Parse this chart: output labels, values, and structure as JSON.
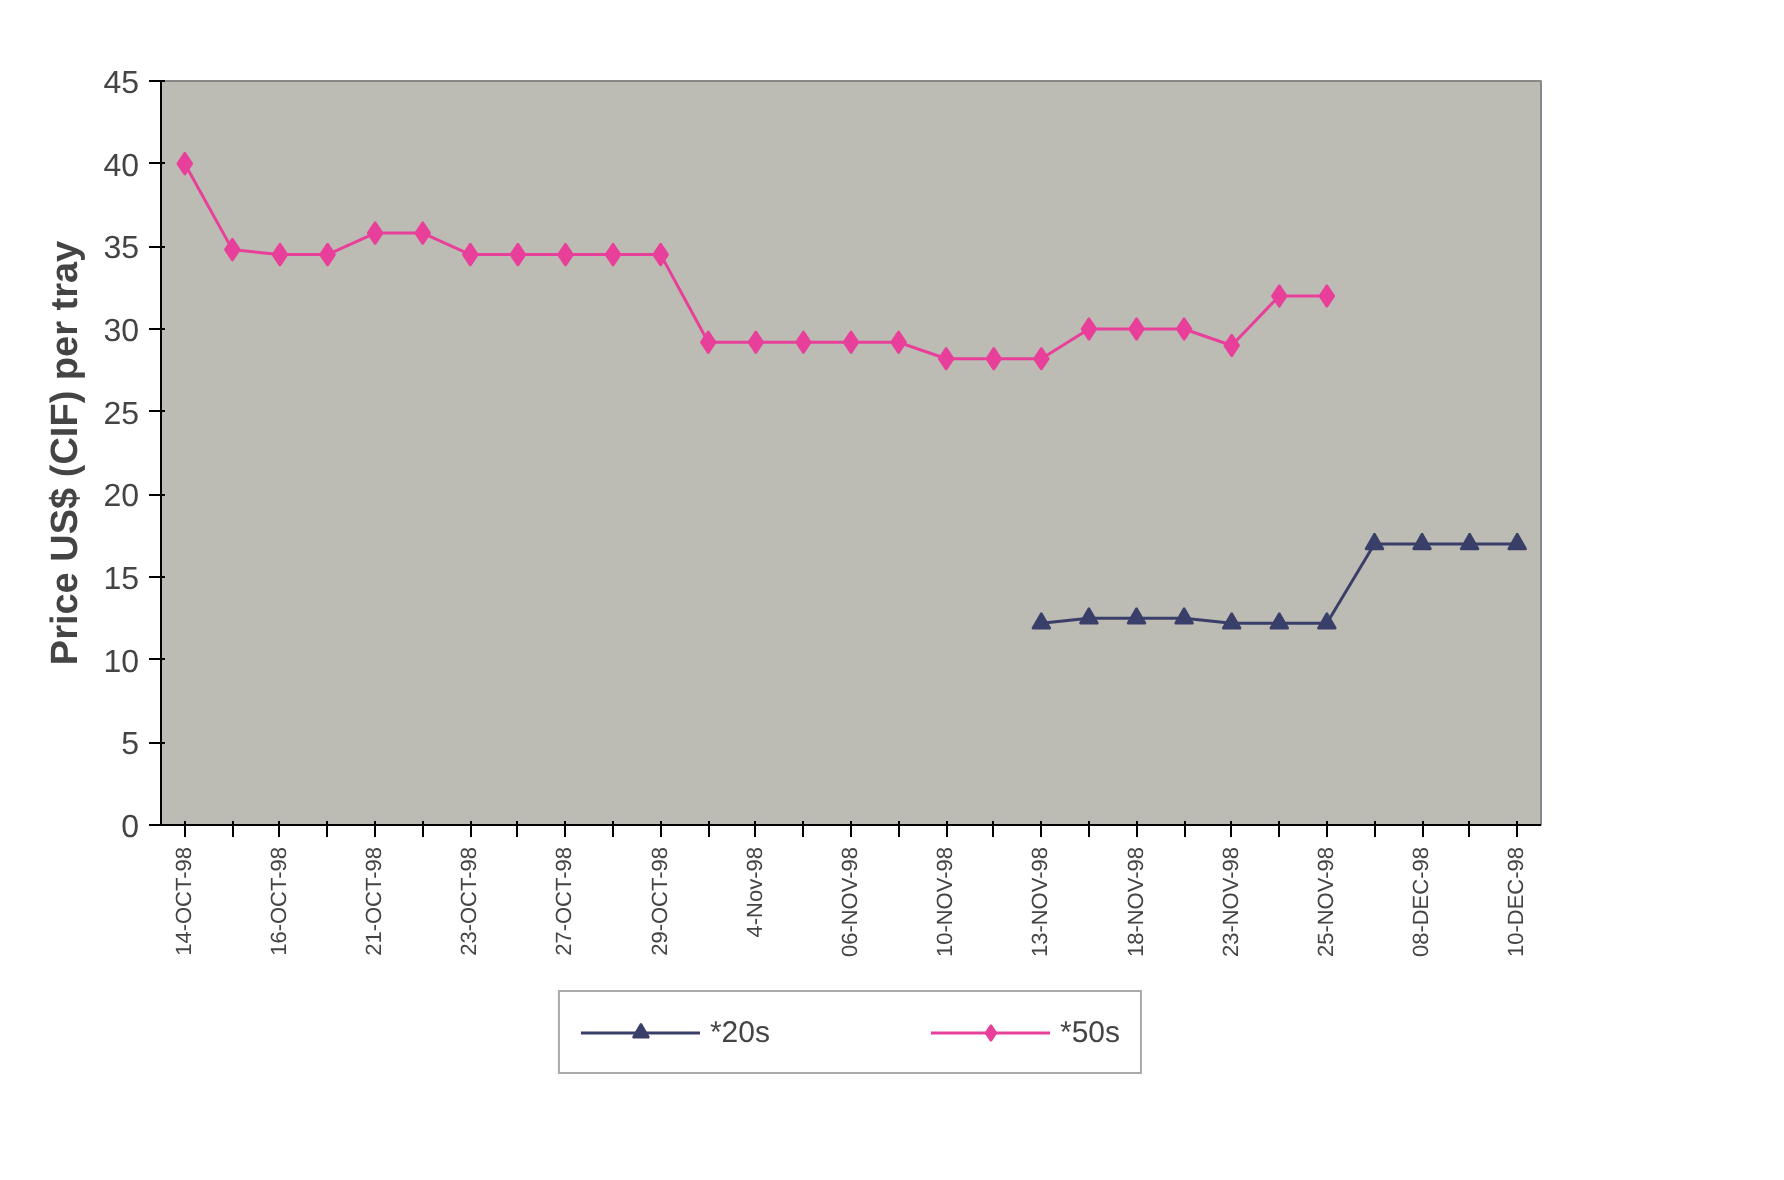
{
  "chart_data": {
    "type": "line",
    "ylabel": "Price US$ (CIF) per tray",
    "categories": [
      "14-OCT-98",
      null,
      "16-OCT-98",
      null,
      "21-OCT-98",
      null,
      "23-OCT-98",
      null,
      "27-OCT-98",
      null,
      "29-OCT-98",
      null,
      "4-Nov-98",
      null,
      "06-NOV-98",
      null,
      "10-NOV-98",
      null,
      "13-NOV-98",
      null,
      "18-NOV-98",
      null,
      "23-NOV-98",
      null,
      "25-NOV-98",
      null,
      "08-DEC-98",
      null,
      "10-DEC-98"
    ],
    "series": [
      {
        "name": "*20s",
        "color": "#3a3f6a",
        "marker": "triangle",
        "values": [
          null,
          null,
          null,
          null,
          null,
          null,
          null,
          null,
          null,
          null,
          null,
          null,
          null,
          null,
          null,
          null,
          null,
          null,
          12.2,
          12.5,
          12.5,
          12.5,
          12.2,
          12.2,
          12.2,
          17,
          17,
          17,
          17
        ]
      },
      {
        "name": "*50s",
        "color": "#e8409a",
        "marker": "diamond",
        "values": [
          40,
          34.8,
          34.5,
          34.5,
          35.8,
          35.8,
          34.5,
          34.5,
          34.5,
          34.5,
          34.5,
          29.2,
          29.2,
          29.2,
          29.2,
          29.2,
          28.2,
          28.2,
          28.2,
          30,
          30,
          30,
          29,
          32,
          32,
          null,
          null,
          null,
          null
        ]
      }
    ],
    "ylim": [
      0,
      45
    ],
    "yticks": [
      0,
      5,
      10,
      15,
      20,
      25,
      30,
      35,
      40,
      45
    ],
    "grid": false,
    "legend": "bottom",
    "line_style": "solid"
  }
}
